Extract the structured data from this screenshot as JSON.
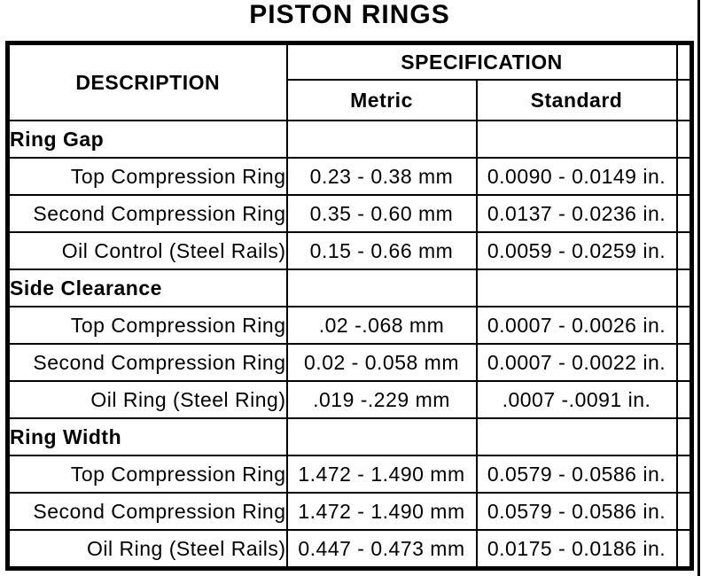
{
  "title": "PISTON RINGS",
  "table": {
    "headers": {
      "description": "DESCRIPTION",
      "specification": "SPECIFICATION",
      "metric": "Metric",
      "standard": "Standard"
    },
    "rows": [
      {
        "type": "section",
        "description": "Ring Gap",
        "metric": "",
        "standard": ""
      },
      {
        "type": "data",
        "description": "Top Compression Ring",
        "metric": "0.23 - 0.38 mm",
        "standard": "0.0090 - 0.0149 in."
      },
      {
        "type": "data",
        "description": "Second Compression Ring",
        "metric": "0.35 - 0.60 mm",
        "standard": "0.0137 - 0.0236 in."
      },
      {
        "type": "data",
        "description": "Oil Control (Steel Rails)",
        "metric": "0.15 - 0.66 mm",
        "standard": "0.0059 - 0.0259 in."
      },
      {
        "type": "section",
        "description": "Side Clearance",
        "metric": "",
        "standard": ""
      },
      {
        "type": "data",
        "description": "Top Compression Ring",
        "metric": ".02 -.068 mm",
        "standard": "0.0007 - 0.0026 in."
      },
      {
        "type": "data",
        "description": "Second Compression Ring",
        "metric": "0.02 - 0.058 mm",
        "standard": "0.0007 - 0.0022 in."
      },
      {
        "type": "data",
        "description": "Oil Ring (Steel Ring)",
        "metric": ".019 -.229 mm",
        "standard": ".0007 -.0091 in."
      },
      {
        "type": "section",
        "description": "Ring Width",
        "metric": "",
        "standard": ""
      },
      {
        "type": "data",
        "description": "Top Compression Ring",
        "metric": "1.472 - 1.490 mm",
        "standard": "0.0579 - 0.0586 in."
      },
      {
        "type": "data",
        "description": "Second Compression Ring",
        "metric": "1.472 - 1.490 mm",
        "standard": "0.0579 - 0.0586 in."
      },
      {
        "type": "data",
        "description": "Oil Ring (Steel Rails)",
        "metric": "0.447 - 0.473 mm",
        "standard": "0.0175 - 0.0186 in."
      }
    ]
  },
  "colors": {
    "ink": "#000000",
    "background": "#ffffff"
  }
}
